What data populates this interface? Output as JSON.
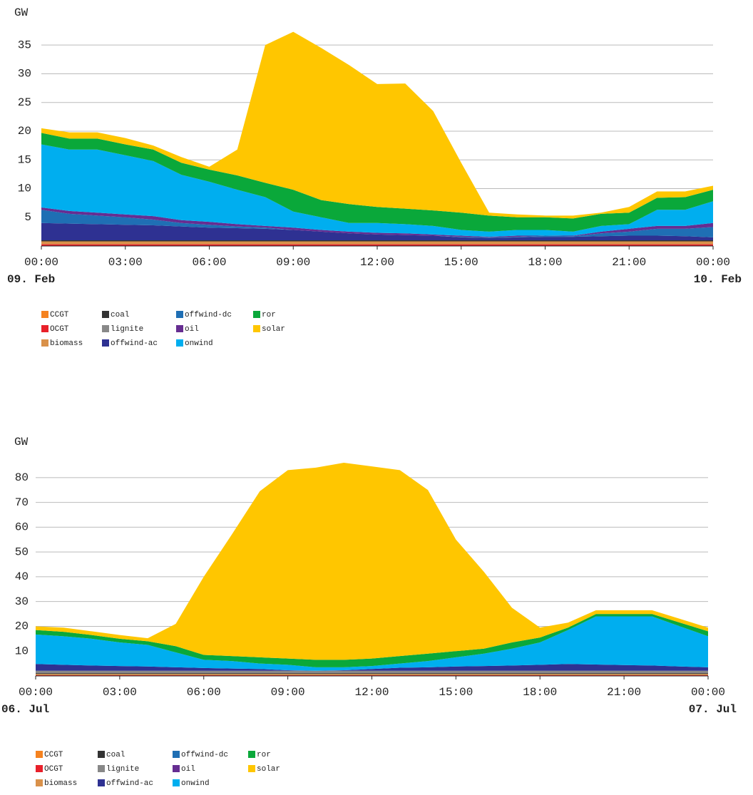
{
  "chart_data": [
    {
      "type": "stacked_area",
      "y_label": "GW",
      "x": [
        0,
        1,
        2,
        3,
        4,
        5,
        6,
        7,
        8,
        9,
        10,
        11,
        12,
        13,
        14,
        15,
        16,
        17,
        18,
        19,
        20,
        21,
        22,
        23,
        24
      ],
      "xlim": [
        0,
        24
      ],
      "xticks": [
        {
          "value": 0,
          "label": "00:00"
        },
        {
          "value": 3,
          "label": "03:00"
        },
        {
          "value": 6,
          "label": "06:00"
        },
        {
          "value": 9,
          "label": "09:00"
        },
        {
          "value": 12,
          "label": "12:00"
        },
        {
          "value": 15,
          "label": "15:00"
        },
        {
          "value": 18,
          "label": "18:00"
        },
        {
          "value": 21,
          "label": "21:00"
        },
        {
          "value": 24,
          "label": "00:00"
        }
      ],
      "date_labels": [
        "09. Feb",
        "10. Feb"
      ],
      "ylim": [
        0,
        38.5
      ],
      "yticks": [
        5,
        10,
        15,
        20,
        25,
        30,
        35
      ],
      "grid": true,
      "series": [
        {
          "name": "CCGT",
          "color": "#f5821f",
          "values": [
            0,
            0,
            0,
            0,
            0,
            0,
            0,
            0,
            0,
            0,
            0,
            0,
            0,
            0,
            0,
            0,
            0,
            0,
            0,
            0,
            0,
            0,
            0,
            0,
            0
          ]
        },
        {
          "name": "OCGT",
          "color": "#e8202a",
          "values": [
            0.3,
            0.3,
            0.3,
            0.3,
            0.3,
            0.3,
            0.3,
            0.3,
            0.3,
            0.3,
            0.3,
            0.3,
            0.3,
            0.3,
            0.3,
            0.3,
            0.3,
            0.3,
            0.3,
            0.3,
            0.3,
            0.3,
            0.3,
            0.3,
            0.3
          ]
        },
        {
          "name": "biomass",
          "color": "#d9914a",
          "values": [
            0.5,
            0.5,
            0.5,
            0.5,
            0.5,
            0.5,
            0.5,
            0.5,
            0.5,
            0.5,
            0.5,
            0.5,
            0.5,
            0.5,
            0.5,
            0.5,
            0.5,
            0.5,
            0.5,
            0.5,
            0.5,
            0.5,
            0.5,
            0.5,
            0.5
          ]
        },
        {
          "name": "coal",
          "color": "#333333",
          "values": [
            0.2,
            0.2,
            0.2,
            0.2,
            0.2,
            0.2,
            0.2,
            0.2,
            0.2,
            0.2,
            0.2,
            0.2,
            0.2,
            0.2,
            0.2,
            0.2,
            0.2,
            0.2,
            0.2,
            0.2,
            0.2,
            0.2,
            0.2,
            0.2,
            0.2
          ]
        },
        {
          "name": "lignite",
          "color": "#888888",
          "values": [
            0,
            0,
            0,
            0,
            0,
            0,
            0,
            0,
            0,
            0,
            0,
            0,
            0,
            0,
            0,
            0,
            0,
            0,
            0,
            0,
            0,
            0,
            0,
            0,
            0
          ]
        },
        {
          "name": "offwind-ac",
          "color": "#2e3192",
          "values": [
            3.0,
            2.9,
            2.8,
            2.7,
            2.6,
            2.4,
            2.2,
            2.1,
            2.0,
            1.8,
            1.5,
            1.2,
            1.0,
            0.9,
            0.8,
            0.5,
            0.4,
            0.5,
            0.6,
            0.6,
            0.7,
            0.8,
            0.8,
            0.7,
            0.5
          ]
        },
        {
          "name": "offwind-dc",
          "color": "#1f6fb4",
          "values": [
            2.3,
            1.7,
            1.5,
            1.3,
            1.0,
            0.6,
            0.5,
            0.3,
            0.2,
            0,
            0,
            0,
            0,
            0,
            0,
            0.1,
            0.1,
            0.1,
            0.2,
            0.1,
            0.5,
            0.7,
            1.2,
            1.3,
            1.8
          ]
        },
        {
          "name": "oil",
          "color": "#662d91",
          "values": [
            0.4,
            0.5,
            0.5,
            0.5,
            0.6,
            0.5,
            0.5,
            0.4,
            0.3,
            0.4,
            0.3,
            0.3,
            0.3,
            0.3,
            0.2,
            0.2,
            0.1,
            0.2,
            0,
            0.1,
            0.3,
            0.5,
            0.5,
            0.5,
            0.7
          ]
        },
        {
          "name": "onwind",
          "color": "#00aeef",
          "values": [
            11.0,
            10.7,
            11.0,
            10.3,
            9.6,
            7.9,
            7.0,
            6.0,
            5.0,
            2.8,
            2.2,
            1.5,
            1.7,
            1.6,
            1.5,
            1.0,
            0.9,
            1.0,
            1.0,
            0.7,
            1.0,
            0.8,
            2.8,
            2.8,
            3.8
          ]
        },
        {
          "name": "ror",
          "color": "#0aa83a",
          "values": [
            2.0,
            1.9,
            1.9,
            1.9,
            2.0,
            2.1,
            2.1,
            2.5,
            2.5,
            3.8,
            3.0,
            3.3,
            2.8,
            2.7,
            2.7,
            3.0,
            2.8,
            2.2,
            2.2,
            2.3,
            2.1,
            2.0,
            2.1,
            2.2,
            2.0
          ]
        },
        {
          "name": "solar",
          "color": "#ffc600",
          "values": [
            0.8,
            1.1,
            1.1,
            1.1,
            0.7,
            1.0,
            0.5,
            4.5,
            24,
            27.5,
            26.5,
            24.2,
            21.4,
            21.8,
            17.3,
            8.7,
            0.5,
            0.5,
            0.3,
            0.5,
            0.2,
            1.0,
            1.1,
            1.0,
            0.7
          ]
        }
      ]
    },
    {
      "type": "stacked_area",
      "y_label": "GW",
      "x": [
        0,
        1,
        2,
        3,
        4,
        5,
        6,
        7,
        8,
        9,
        10,
        11,
        12,
        13,
        14,
        15,
        16,
        17,
        18,
        19,
        20,
        21,
        22,
        23,
        24
      ],
      "xlim": [
        0,
        24
      ],
      "xticks": [
        {
          "value": 0,
          "label": "00:00"
        },
        {
          "value": 3,
          "label": "03:00"
        },
        {
          "value": 6,
          "label": "06:00"
        },
        {
          "value": 9,
          "label": "09:00"
        },
        {
          "value": 12,
          "label": "12:00"
        },
        {
          "value": 15,
          "label": "15:00"
        },
        {
          "value": 18,
          "label": "18:00"
        },
        {
          "value": 21,
          "label": "21:00"
        },
        {
          "value": 24,
          "label": "00:00"
        }
      ],
      "date_labels": [
        "06. Jul",
        "07. Jul"
      ],
      "ylim": [
        0,
        88
      ],
      "yticks": [
        10,
        20,
        30,
        40,
        50,
        60,
        70,
        80
      ],
      "grid": true,
      "series": [
        {
          "name": "CCGT",
          "color": "#f5821f",
          "values": [
            0,
            0,
            0,
            0,
            0,
            0,
            0,
            0,
            0,
            0,
            0,
            0,
            0,
            0,
            0,
            0,
            0,
            0,
            0,
            0,
            0,
            0,
            0,
            0,
            0
          ]
        },
        {
          "name": "OCGT",
          "color": "#e8202a",
          "values": [
            0.3,
            0.3,
            0.3,
            0.3,
            0.3,
            0.3,
            0.3,
            0.3,
            0.3,
            0.3,
            0.3,
            0.3,
            0.3,
            0.3,
            0.3,
            0.3,
            0.3,
            0.3,
            0.3,
            0.3,
            0.3,
            0.3,
            0.3,
            0.3,
            0.3
          ]
        },
        {
          "name": "biomass",
          "color": "#d9914a",
          "values": [
            0.5,
            0.5,
            0.5,
            0.5,
            0.5,
            0.5,
            0.5,
            0.5,
            0.5,
            0.5,
            0.5,
            0.5,
            0.5,
            0.5,
            0.5,
            0.5,
            0.5,
            0.5,
            0.5,
            0.5,
            0.5,
            0.5,
            0.5,
            0.5,
            0.5
          ]
        },
        {
          "name": "coal",
          "color": "#333333",
          "values": [
            0.3,
            0.3,
            0.3,
            0.3,
            0.3,
            0.3,
            0.3,
            0.3,
            0.3,
            0.3,
            0.3,
            0.3,
            0.3,
            0.3,
            0.3,
            0.3,
            0.3,
            0.3,
            0.3,
            0.3,
            0.3,
            0.3,
            0.3,
            0.3,
            0.3
          ]
        },
        {
          "name": "lignite",
          "color": "#888888",
          "values": [
            1.0,
            1.0,
            1.0,
            1.0,
            1.0,
            1.0,
            1.0,
            1.0,
            1.0,
            1.0,
            1.0,
            1.0,
            1.0,
            1.0,
            1.0,
            1.0,
            1.0,
            1.0,
            1.0,
            1.0,
            1.0,
            1.0,
            1.0,
            1.0,
            1.0
          ]
        },
        {
          "name": "offwind-ac",
          "color": "#2e3192",
          "values": [
            2.7,
            2.4,
            2.1,
            1.9,
            1.7,
            1.4,
            1.1,
            0.9,
            0.7,
            0.2,
            0,
            0.2,
            0.7,
            1.2,
            1.4,
            1.7,
            1.9,
            2.1,
            2.4,
            2.7,
            2.5,
            2.3,
            2.1,
            1.7,
            1.4
          ]
        },
        {
          "name": "offwind-dc",
          "color": "#1f6fb4",
          "values": [
            0,
            0,
            0,
            0,
            0,
            0,
            0,
            0,
            0,
            0,
            0,
            0,
            0,
            0,
            0,
            0,
            0,
            0,
            0,
            0,
            0,
            0,
            0,
            0,
            0
          ]
        },
        {
          "name": "oil",
          "color": "#662d91",
          "values": [
            0,
            0,
            0,
            0,
            0,
            0,
            0,
            0,
            0,
            0,
            0,
            0,
            0,
            0,
            0,
            0,
            0,
            0,
            0,
            0,
            0,
            0,
            0,
            0,
            0
          ]
        },
        {
          "name": "onwind",
          "color": "#00aeef",
          "values": [
            11.9,
            11.5,
            10.8,
            9.5,
            8.7,
            6,
            3.3,
            3,
            2.2,
            2.2,
            1.4,
            1.2,
            1.2,
            1.7,
            2.5,
            3.7,
            5,
            6.8,
            9,
            13.7,
            19.4,
            19.6,
            19.8,
            16.2,
            12.5
          ]
        },
        {
          "name": "ror",
          "color": "#0aa83a",
          "values": [
            1.8,
            1.8,
            1.5,
            1.5,
            1.5,
            2.5,
            2,
            2,
            2.5,
            2.5,
            3,
            3,
            3,
            3,
            3,
            2.5,
            2,
            2.5,
            2,
            1,
            1,
            1,
            1,
            1.5,
            2
          ]
        },
        {
          "name": "solar",
          "color": "#ffc600",
          "values": [
            1.5,
            1.7,
            1.5,
            1.5,
            1.2,
            9,
            31.5,
            49,
            67,
            76,
            77.5,
            79.5,
            77.5,
            75,
            66,
            45,
            31,
            14,
            4,
            2,
            1.5,
            1.5,
            1.5,
            1.5,
            1.5
          ]
        }
      ]
    }
  ]
}
